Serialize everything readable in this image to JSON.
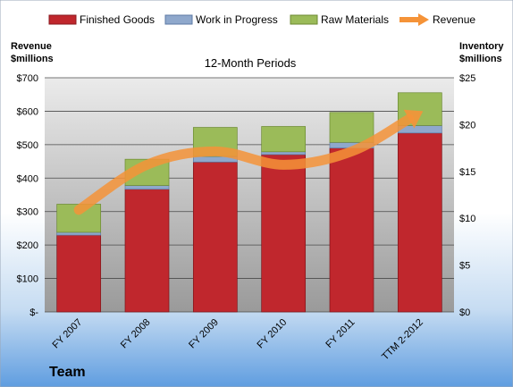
{
  "chart_data": {
    "type": "bar",
    "subtitle": "12-Month Periods",
    "company": "Team",
    "categories": [
      "FY 2007",
      "FY 2008",
      "FY 2009",
      "FY 2010",
      "FY 2011",
      "TTM 2-2012"
    ],
    "left_axis": {
      "label_line1": "Revenue",
      "label_line2": "$millions",
      "ylim": [
        0,
        700
      ],
      "ticks": [
        "$-",
        "$100",
        "$200",
        "$300",
        "$400",
        "$500",
        "$600",
        "$700"
      ]
    },
    "right_axis": {
      "label_line1": "Inventory",
      "label_line2": "$millions",
      "ylim": [
        0,
        25
      ],
      "ticks": [
        "$0",
        "$5",
        "$10",
        "$15",
        "$20",
        "$25"
      ]
    },
    "series": [
      {
        "name": "Finished Goods",
        "axis": "right",
        "kind": "stacked-bar",
        "color": "#c0272d",
        "values": [
          8.2,
          13.1,
          16.0,
          16.8,
          17.5,
          19.1
        ]
      },
      {
        "name": "Work in Progress",
        "axis": "right",
        "kind": "stacked-bar",
        "color": "#8fa8cc",
        "values": [
          0.3,
          0.4,
          0.6,
          0.3,
          0.6,
          0.8
        ]
      },
      {
        "name": "Raw Materials",
        "axis": "right",
        "kind": "stacked-bar",
        "color": "#9bbb59",
        "values": [
          3.0,
          2.8,
          3.1,
          2.7,
          3.2,
          3.5
        ]
      },
      {
        "name": "Revenue",
        "axis": "left",
        "kind": "line",
        "color": "#f59338",
        "values": [
          305,
          440,
          480,
          440,
          480,
          595
        ]
      }
    ],
    "grid": true,
    "legend_position": "top"
  }
}
